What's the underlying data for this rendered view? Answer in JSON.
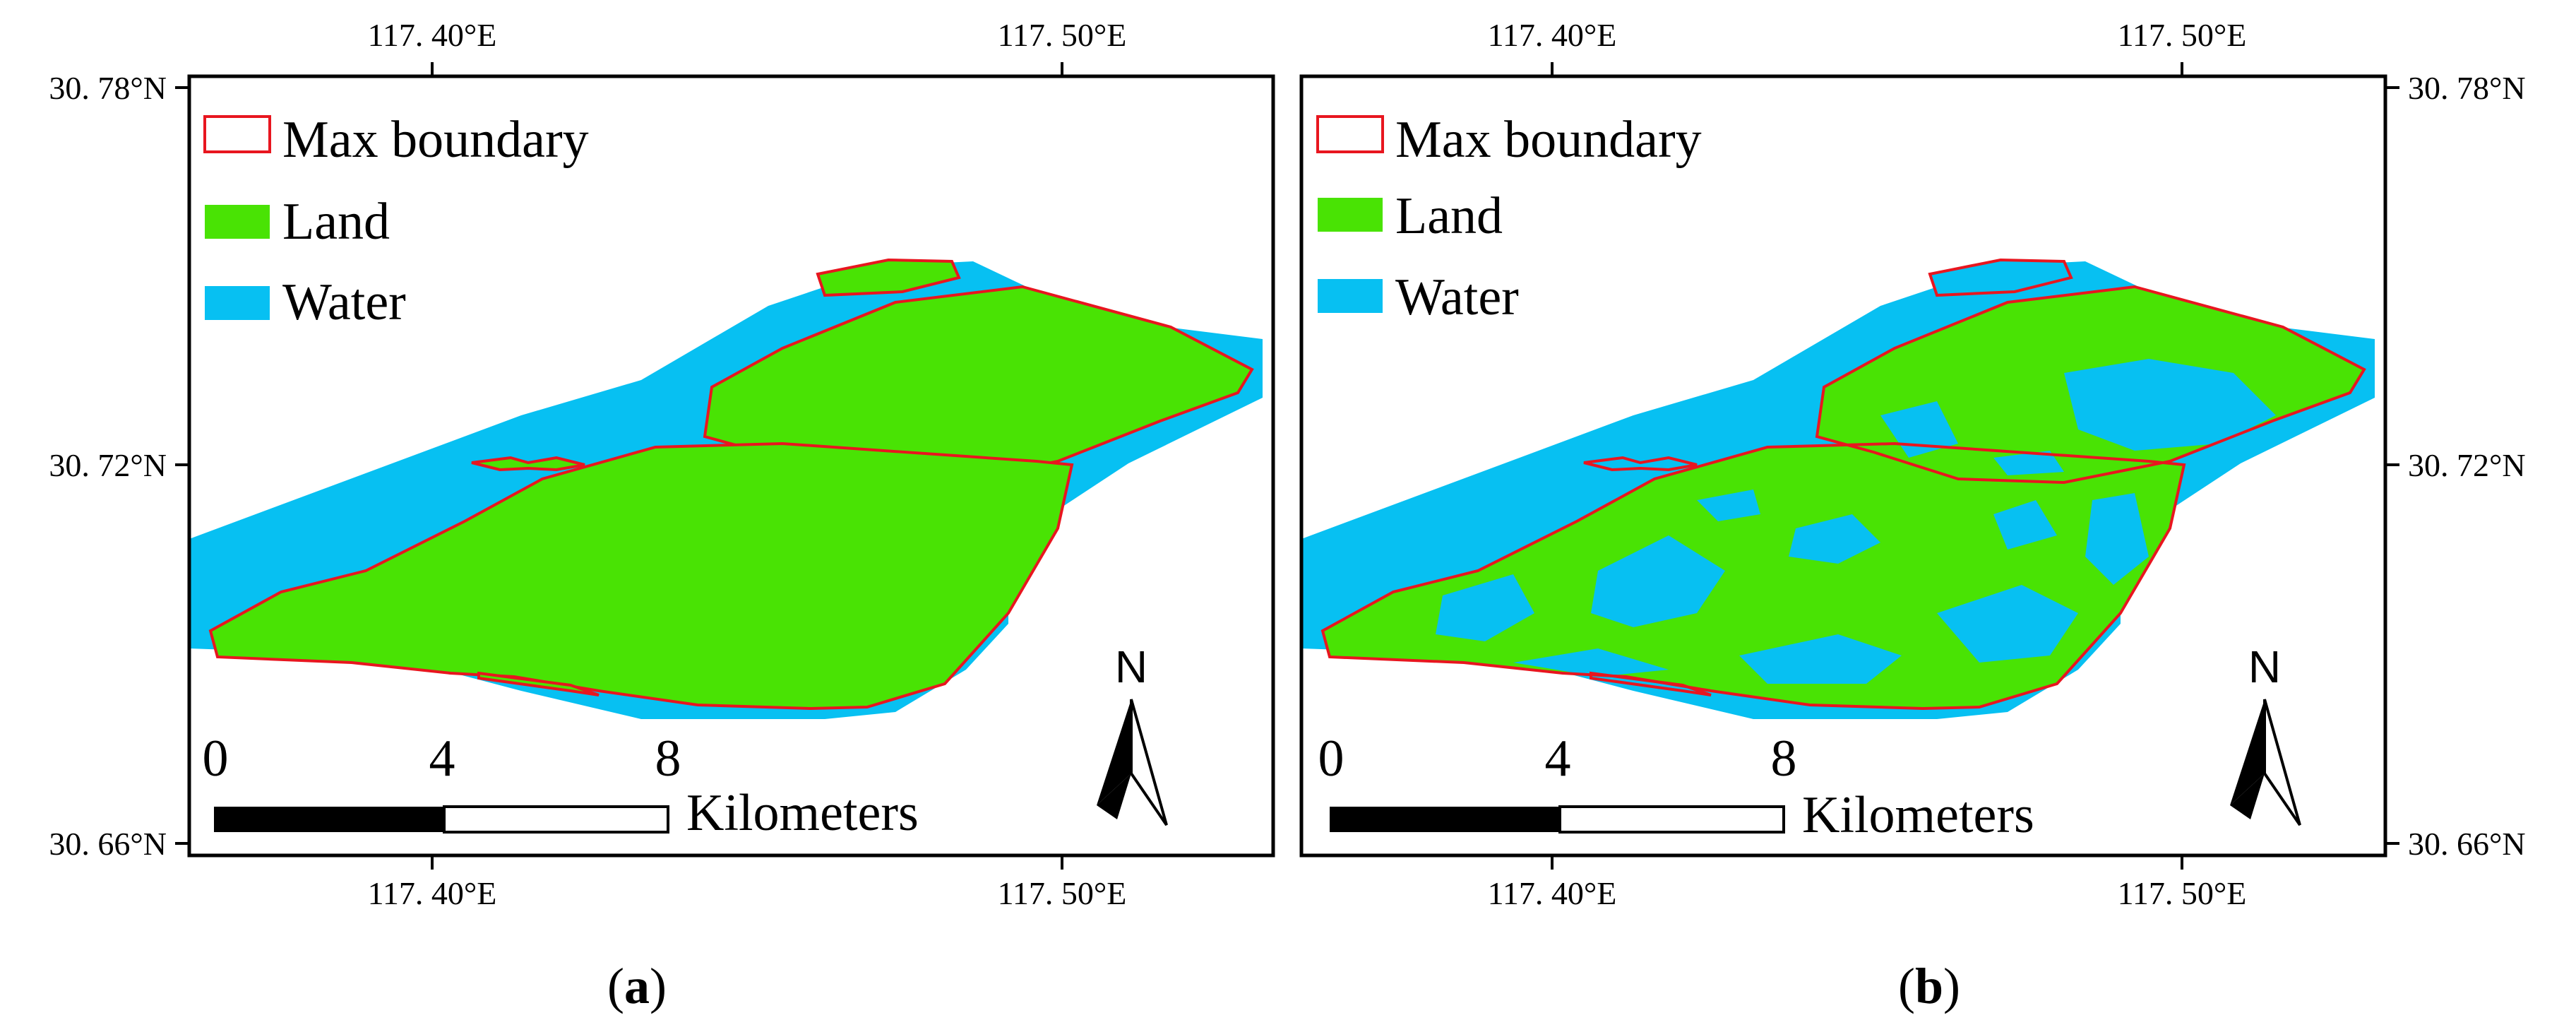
{
  "colors": {
    "land": "#49e304",
    "water": "#07c0f2",
    "boundary": "#e8161f",
    "frame": "#000000"
  },
  "legend": {
    "max_boundary": "Max boundary",
    "land": "Land",
    "water": "Water"
  },
  "axes": {
    "lon_ticks": [
      "117. 40°E",
      "117. 50°E"
    ],
    "lat_ticks": [
      "30. 78°N",
      "30. 72°N",
      "30. 66°N"
    ]
  },
  "scale_bar": {
    "ticks": [
      "0",
      "4",
      "8"
    ],
    "unit": "Kilometers"
  },
  "north_arrow": {
    "label": "N"
  },
  "panels": [
    {
      "id": "a",
      "caption_open": "(",
      "caption_letter": "a",
      "caption_close": ")"
    },
    {
      "id": "b",
      "caption_open": "(",
      "caption_letter": "b",
      "caption_close": ")"
    }
  ]
}
